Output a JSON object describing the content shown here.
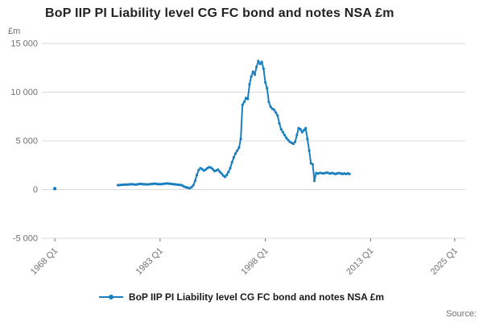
{
  "page": {
    "title": "BoP IIP PI Liability level CG FC bond and notes NSA £m",
    "y_unit": "£m",
    "legend_label": "BoP IIP PI Liability level CG FC bond and notes NSA £m",
    "source_label": "Source:"
  },
  "colors": {
    "line": "#1a7fbf",
    "grid": "#d9d9d9",
    "axis_text": "#707071",
    "title_text": "#222222"
  },
  "chart_data": {
    "type": "line",
    "title": "BoP IIP PI Liability level CG FC bond and notes NSA £m",
    "xlabel": "",
    "ylabel": "£m",
    "xlim": [
      1966.5,
      2026.5
    ],
    "ylim": [
      -5000,
      15000
    ],
    "grid": "horizontal",
    "legend_position": "bottom",
    "x_ticks": [
      {
        "value": 1968,
        "label": "1968 Q1"
      },
      {
        "value": 1983,
        "label": "1983 Q1"
      },
      {
        "value": 1998,
        "label": "1998 Q1"
      },
      {
        "value": 2013,
        "label": "2013 Q1"
      },
      {
        "value": 2025,
        "label": "2025 Q1"
      }
    ],
    "y_ticks": [
      {
        "value": 15000,
        "label": "15 000"
      },
      {
        "value": 10000,
        "label": "10 000"
      },
      {
        "value": 5000,
        "label": "5 000"
      },
      {
        "value": 0,
        "label": "0"
      },
      {
        "value": -5000,
        "label": "-5 000"
      }
    ],
    "isolated_points": [
      {
        "x": 1968.0,
        "y": 100
      }
    ],
    "series": [
      {
        "name": "BoP IIP PI Liability level CG FC bond and notes NSA £m",
        "x_start": 1977.0,
        "x_step": 0.25,
        "values": [
          450,
          470,
          490,
          500,
          520,
          510,
          530,
          540,
          560,
          530,
          510,
          540,
          570,
          590,
          560,
          550,
          540,
          530,
          550,
          570,
          590,
          610,
          580,
          560,
          550,
          570,
          590,
          610,
          630,
          610,
          590,
          570,
          550,
          530,
          510,
          490,
          470,
          380,
          280,
          230,
          180,
          140,
          260,
          450,
          900,
          1500,
          2000,
          2200,
          2100,
          1950,
          2050,
          2200,
          2300,
          2250,
          2100,
          1900,
          1950,
          2050,
          1850,
          1650,
          1450,
          1300,
          1500,
          1800,
          2200,
          2800,
          3300,
          3700,
          4000,
          4300,
          5200,
          8700,
          9000,
          9400,
          9300,
          10800,
          11600,
          12100,
          11800,
          12600,
          13200,
          12900,
          13100,
          12400,
          11000,
          10400,
          9000,
          8500,
          8300,
          8200,
          7900,
          7600,
          6800,
          6200,
          5900,
          5600,
          5300,
          5100,
          4900,
          4800,
          4700,
          4900,
          5600,
          6300,
          6200,
          5900,
          6100,
          6300,
          5200,
          4000,
          2700,
          2600,
          900,
          1700,
          1650,
          1700,
          1700,
          1650,
          1700,
          1750,
          1700,
          1650,
          1700,
          1650,
          1600,
          1650,
          1700,
          1650,
          1600,
          1650,
          1600,
          1650,
          1600
        ]
      }
    ]
  }
}
